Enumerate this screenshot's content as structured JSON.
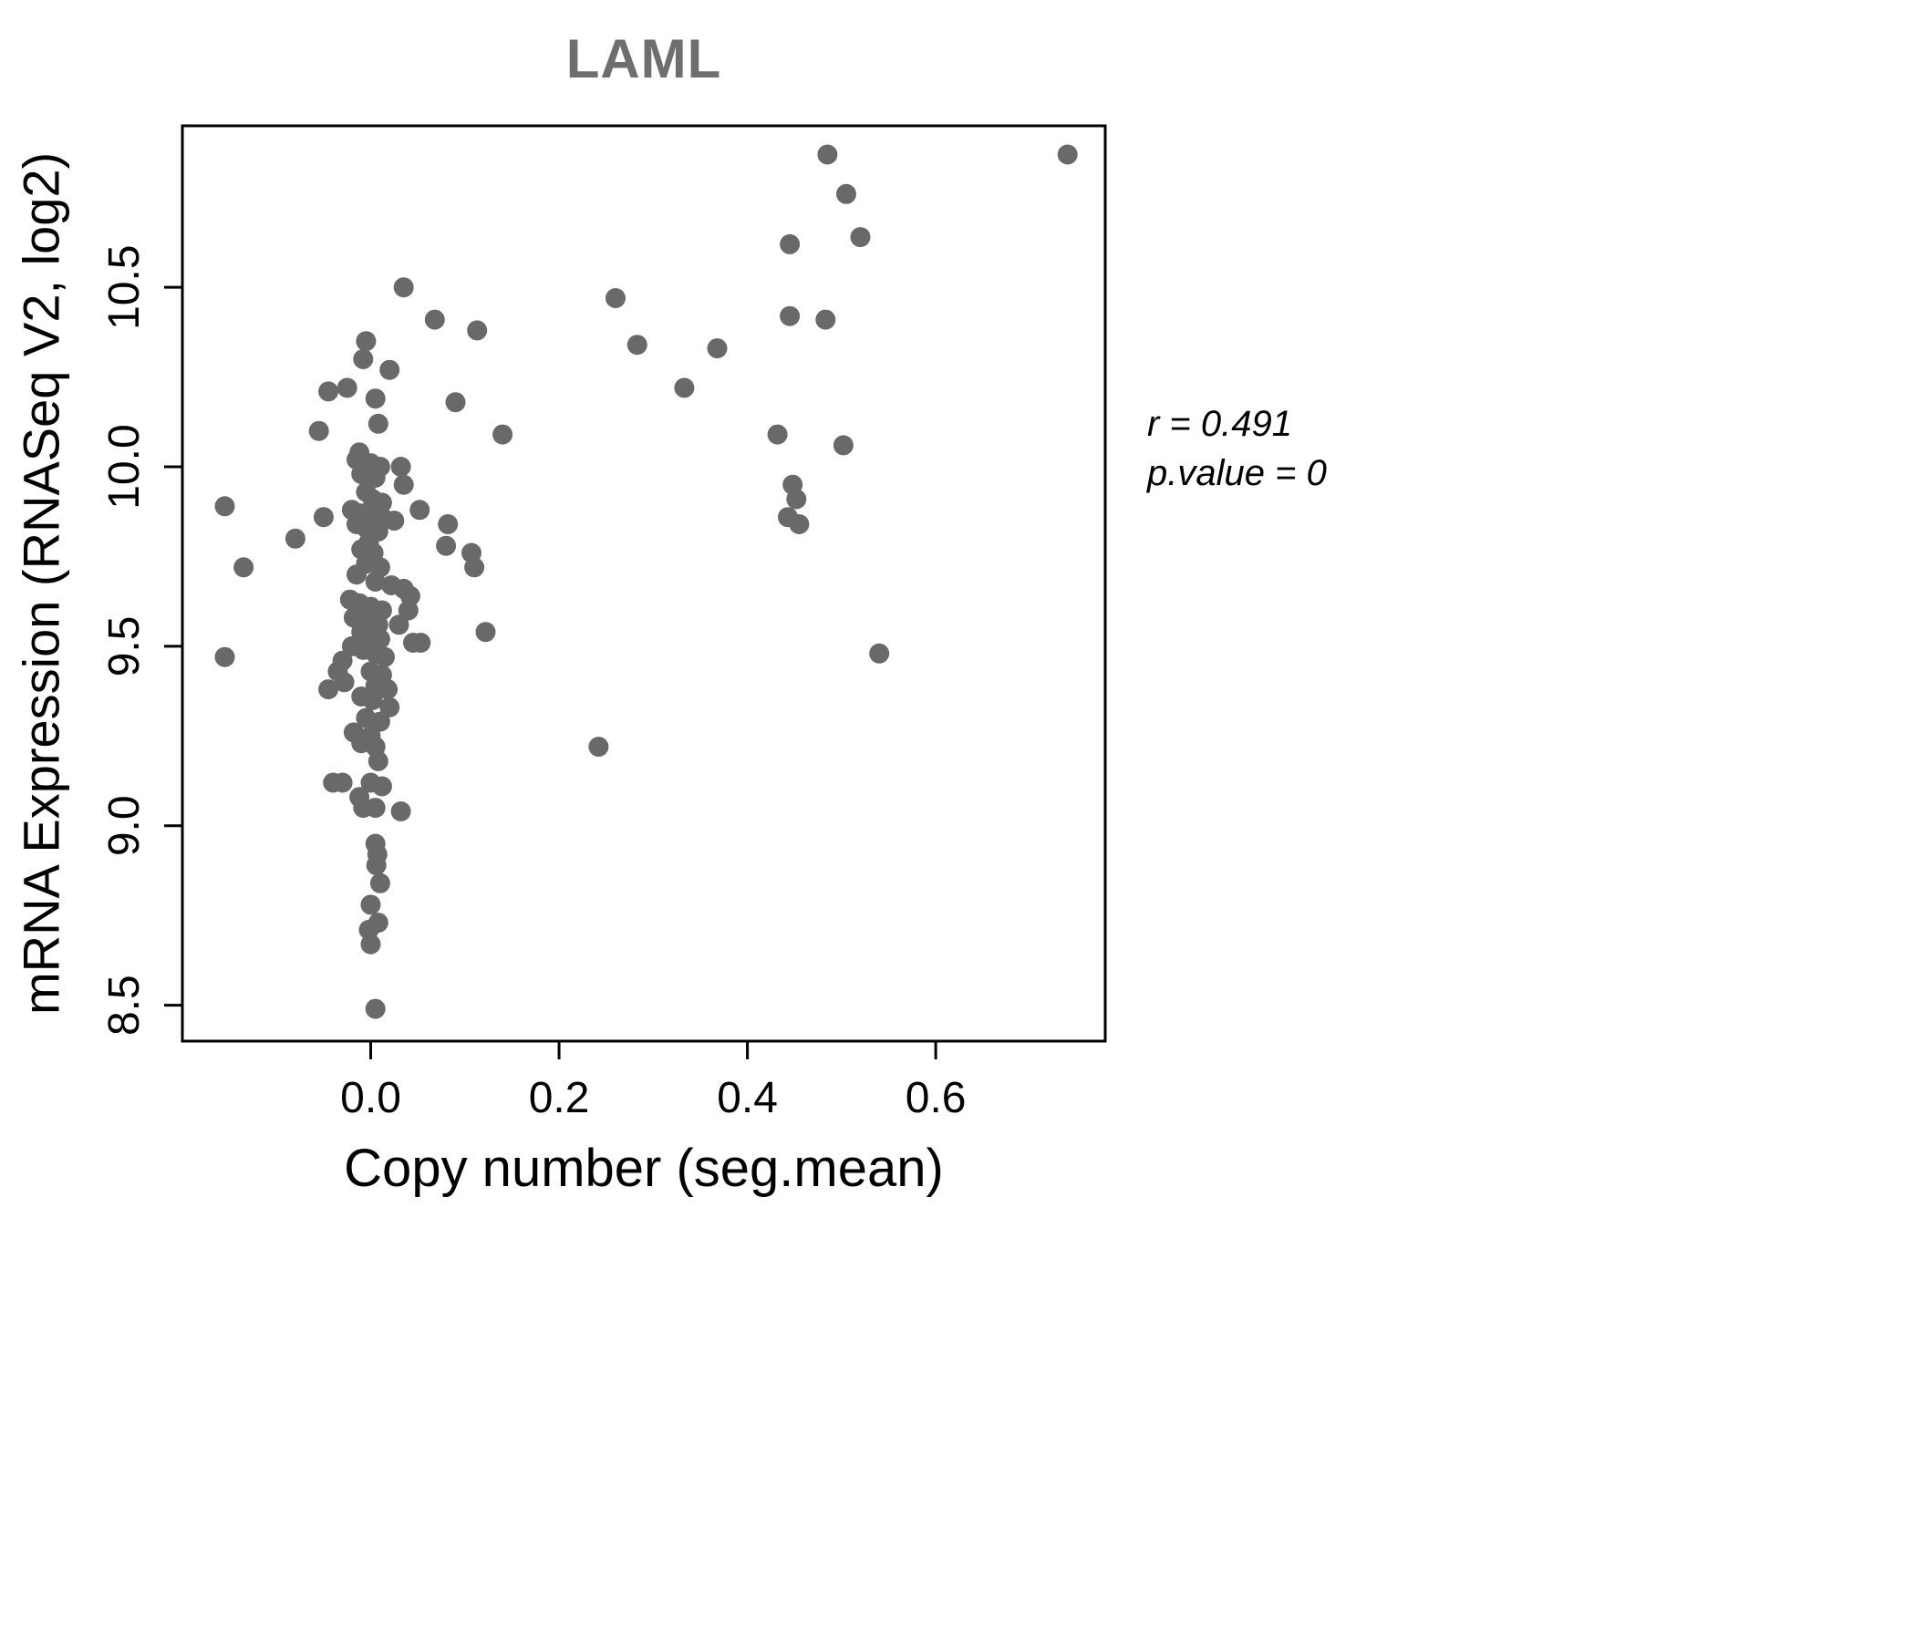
{
  "title": "LAML",
  "annotation": {
    "line1": "r = 0.491",
    "line2": "p.value = 0"
  },
  "chart_data": {
    "type": "scatter",
    "title": "LAML",
    "xlabel": "Copy number (seg.mean)",
    "ylabel": "mRNA Expression (RNASeq V2, log2)",
    "xlim": [
      -0.2,
      0.78
    ],
    "ylim": [
      8.4,
      10.95
    ],
    "xticks": [
      0.0,
      0.2,
      0.4,
      0.6
    ],
    "yticks": [
      8.5,
      9.0,
      9.5,
      10.0,
      10.5
    ],
    "grid": false,
    "legend": "none",
    "point_color": "#696969",
    "title_color": "#6e6e6e",
    "r": 0.491,
    "p_value": 0,
    "points": [
      [
        0.485,
        10.87
      ],
      [
        0.74,
        10.87
      ],
      [
        0.505,
        10.76
      ],
      [
        0.52,
        10.64
      ],
      [
        0.445,
        10.62
      ],
      [
        0.26,
        10.47
      ],
      [
        0.445,
        10.42
      ],
      [
        0.483,
        10.41
      ],
      [
        0.283,
        10.34
      ],
      [
        0.368,
        10.33
      ],
      [
        0.333,
        10.22
      ],
      [
        0.432,
        10.09
      ],
      [
        0.502,
        10.06
      ],
      [
        0.448,
        9.95
      ],
      [
        0.452,
        9.91
      ],
      [
        0.443,
        9.86
      ],
      [
        0.455,
        9.84
      ],
      [
        0.54,
        9.48
      ],
      [
        0.242,
        9.22
      ],
      [
        0.068,
        10.41
      ],
      [
        0.113,
        10.38
      ],
      [
        0.09,
        10.18
      ],
      [
        0.14,
        10.09
      ],
      [
        0.052,
        9.88
      ],
      [
        0.082,
        9.84
      ],
      [
        0.08,
        9.78
      ],
      [
        0.107,
        9.76
      ],
      [
        0.11,
        9.72
      ],
      [
        0.122,
        9.54
      ],
      [
        0.053,
        9.51
      ],
      [
        -0.155,
        9.89
      ],
      [
        -0.135,
        9.72
      ],
      [
        -0.155,
        9.47
      ],
      [
        -0.08,
        9.8
      ],
      [
        -0.055,
        10.1
      ],
      [
        -0.05,
        9.86
      ],
      [
        -0.045,
        10.21
      ],
      [
        0.035,
        10.5
      ],
      [
        -0.005,
        10.35
      ],
      [
        -0.008,
        10.3
      ],
      [
        0.02,
        10.27
      ],
      [
        -0.025,
        10.22
      ],
      [
        0.005,
        10.19
      ],
      [
        0.008,
        10.12
      ],
      [
        -0.012,
        10.04
      ],
      [
        -0.015,
        10.02
      ],
      [
        0.0,
        10.01
      ],
      [
        0.01,
        10.0
      ],
      [
        0.032,
        10.0
      ],
      [
        -0.01,
        9.98
      ],
      [
        0.005,
        9.97
      ],
      [
        0.035,
        9.95
      ],
      [
        -0.005,
        9.93
      ],
      [
        0.002,
        9.91
      ],
      [
        0.012,
        9.9
      ],
      [
        -0.02,
        9.88
      ],
      [
        -0.01,
        9.87
      ],
      [
        0.0,
        9.86
      ],
      [
        0.012,
        9.86
      ],
      [
        0.025,
        9.85
      ],
      [
        -0.015,
        9.84
      ],
      [
        -0.005,
        9.83
      ],
      [
        0.008,
        9.82
      ],
      [
        -0.002,
        9.79
      ],
      [
        -0.01,
        9.77
      ],
      [
        0.003,
        9.76
      ],
      [
        -0.005,
        9.73
      ],
      [
        0.01,
        9.72
      ],
      [
        -0.015,
        9.7
      ],
      [
        0.005,
        9.68
      ],
      [
        0.022,
        9.67
      ],
      [
        0.035,
        9.66
      ],
      [
        0.042,
        9.64
      ],
      [
        -0.022,
        9.63
      ],
      [
        -0.012,
        9.62
      ],
      [
        0.0,
        9.61
      ],
      [
        0.012,
        9.6
      ],
      [
        0.04,
        9.6
      ],
      [
        -0.018,
        9.58
      ],
      [
        -0.005,
        9.57
      ],
      [
        0.008,
        9.56
      ],
      [
        0.03,
        9.56
      ],
      [
        -0.01,
        9.54
      ],
      [
        0.0,
        9.53
      ],
      [
        0.01,
        9.52
      ],
      [
        0.045,
        9.51
      ],
      [
        -0.02,
        9.5
      ],
      [
        -0.008,
        9.49
      ],
      [
        0.005,
        9.48
      ],
      [
        0.015,
        9.47
      ],
      [
        -0.03,
        9.46
      ],
      [
        -0.035,
        9.43
      ],
      [
        0.0,
        9.43
      ],
      [
        0.012,
        9.42
      ],
      [
        -0.028,
        9.4
      ],
      [
        0.005,
        9.39
      ],
      [
        0.018,
        9.38
      ],
      [
        -0.045,
        9.38
      ],
      [
        -0.01,
        9.36
      ],
      [
        0.002,
        9.35
      ],
      [
        0.02,
        9.33
      ],
      [
        -0.005,
        9.3
      ],
      [
        0.01,
        9.29
      ],
      [
        -0.018,
        9.26
      ],
      [
        0.0,
        9.25
      ],
      [
        -0.01,
        9.23
      ],
      [
        0.005,
        9.22
      ],
      [
        0.008,
        9.18
      ],
      [
        -0.03,
        9.12
      ],
      [
        -0.04,
        9.12
      ],
      [
        0.0,
        9.12
      ],
      [
        0.012,
        9.11
      ],
      [
        -0.012,
        9.08
      ],
      [
        -0.008,
        9.05
      ],
      [
        0.005,
        9.05
      ],
      [
        0.032,
        9.04
      ],
      [
        0.005,
        8.95
      ],
      [
        0.007,
        8.92
      ],
      [
        0.006,
        8.89
      ],
      [
        0.01,
        8.84
      ],
      [
        0.0,
        8.78
      ],
      [
        0.008,
        8.73
      ],
      [
        -0.002,
        8.71
      ],
      [
        0.0,
        8.67
      ],
      [
        0.005,
        8.49
      ]
    ]
  }
}
